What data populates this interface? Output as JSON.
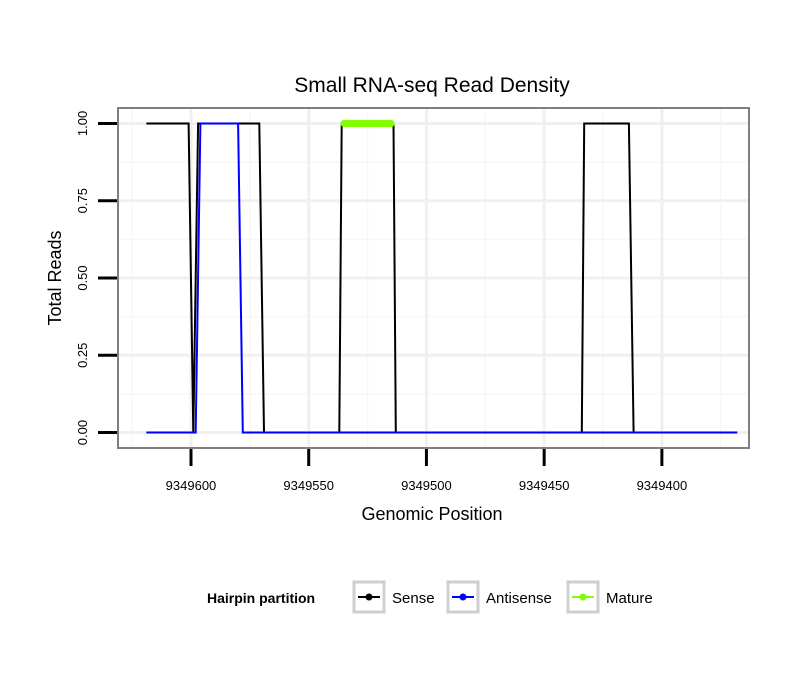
{
  "chart_data": {
    "type": "line",
    "title": "Small RNA-seq Read Density",
    "xlabel": "Genomic Position",
    "ylabel": "Total Reads",
    "xlim": [
      9349631,
      9349363
    ],
    "x_reversed": true,
    "ylim": [
      -0.05,
      1.05
    ],
    "x_ticks": [
      9349600,
      9349550,
      9349500,
      9349450,
      9349400
    ],
    "x_tick_labels": [
      "9349600",
      "9349550",
      "9349500",
      "9349450",
      "9349400"
    ],
    "y_ticks": [
      0,
      0.25,
      0.5,
      0.75,
      1.0
    ],
    "y_tick_labels": [
      "0.00",
      "0.25",
      "0.50",
      "0.75",
      "1.00"
    ],
    "grid": true,
    "legend": {
      "title": "Hairpin partition",
      "position": "bottom",
      "entries": [
        "Sense",
        "Antisense",
        "Mature"
      ]
    },
    "series": [
      {
        "name": "Sense",
        "color": "#000000",
        "x": [
          9349619,
          9349601,
          9349599,
          9349597,
          9349571,
          9349569,
          9349537,
          9349536,
          9349514,
          9349513,
          9349434,
          9349433,
          9349414,
          9349412,
          9349368
        ],
        "y": [
          1,
          1,
          0,
          1,
          1,
          0,
          0,
          1,
          1,
          0,
          0,
          1,
          1,
          0,
          0
        ]
      },
      {
        "name": "Antisense",
        "color": "#0000ff",
        "x": [
          9349619,
          9349598,
          9349596,
          9349580,
          9349578,
          9349368
        ],
        "y": [
          0,
          0,
          1,
          1,
          0,
          0
        ]
      },
      {
        "name": "Mature",
        "color": "#7fff00",
        "x": [
          9349535,
          9349515
        ],
        "y": [
          1,
          1
        ]
      }
    ]
  }
}
